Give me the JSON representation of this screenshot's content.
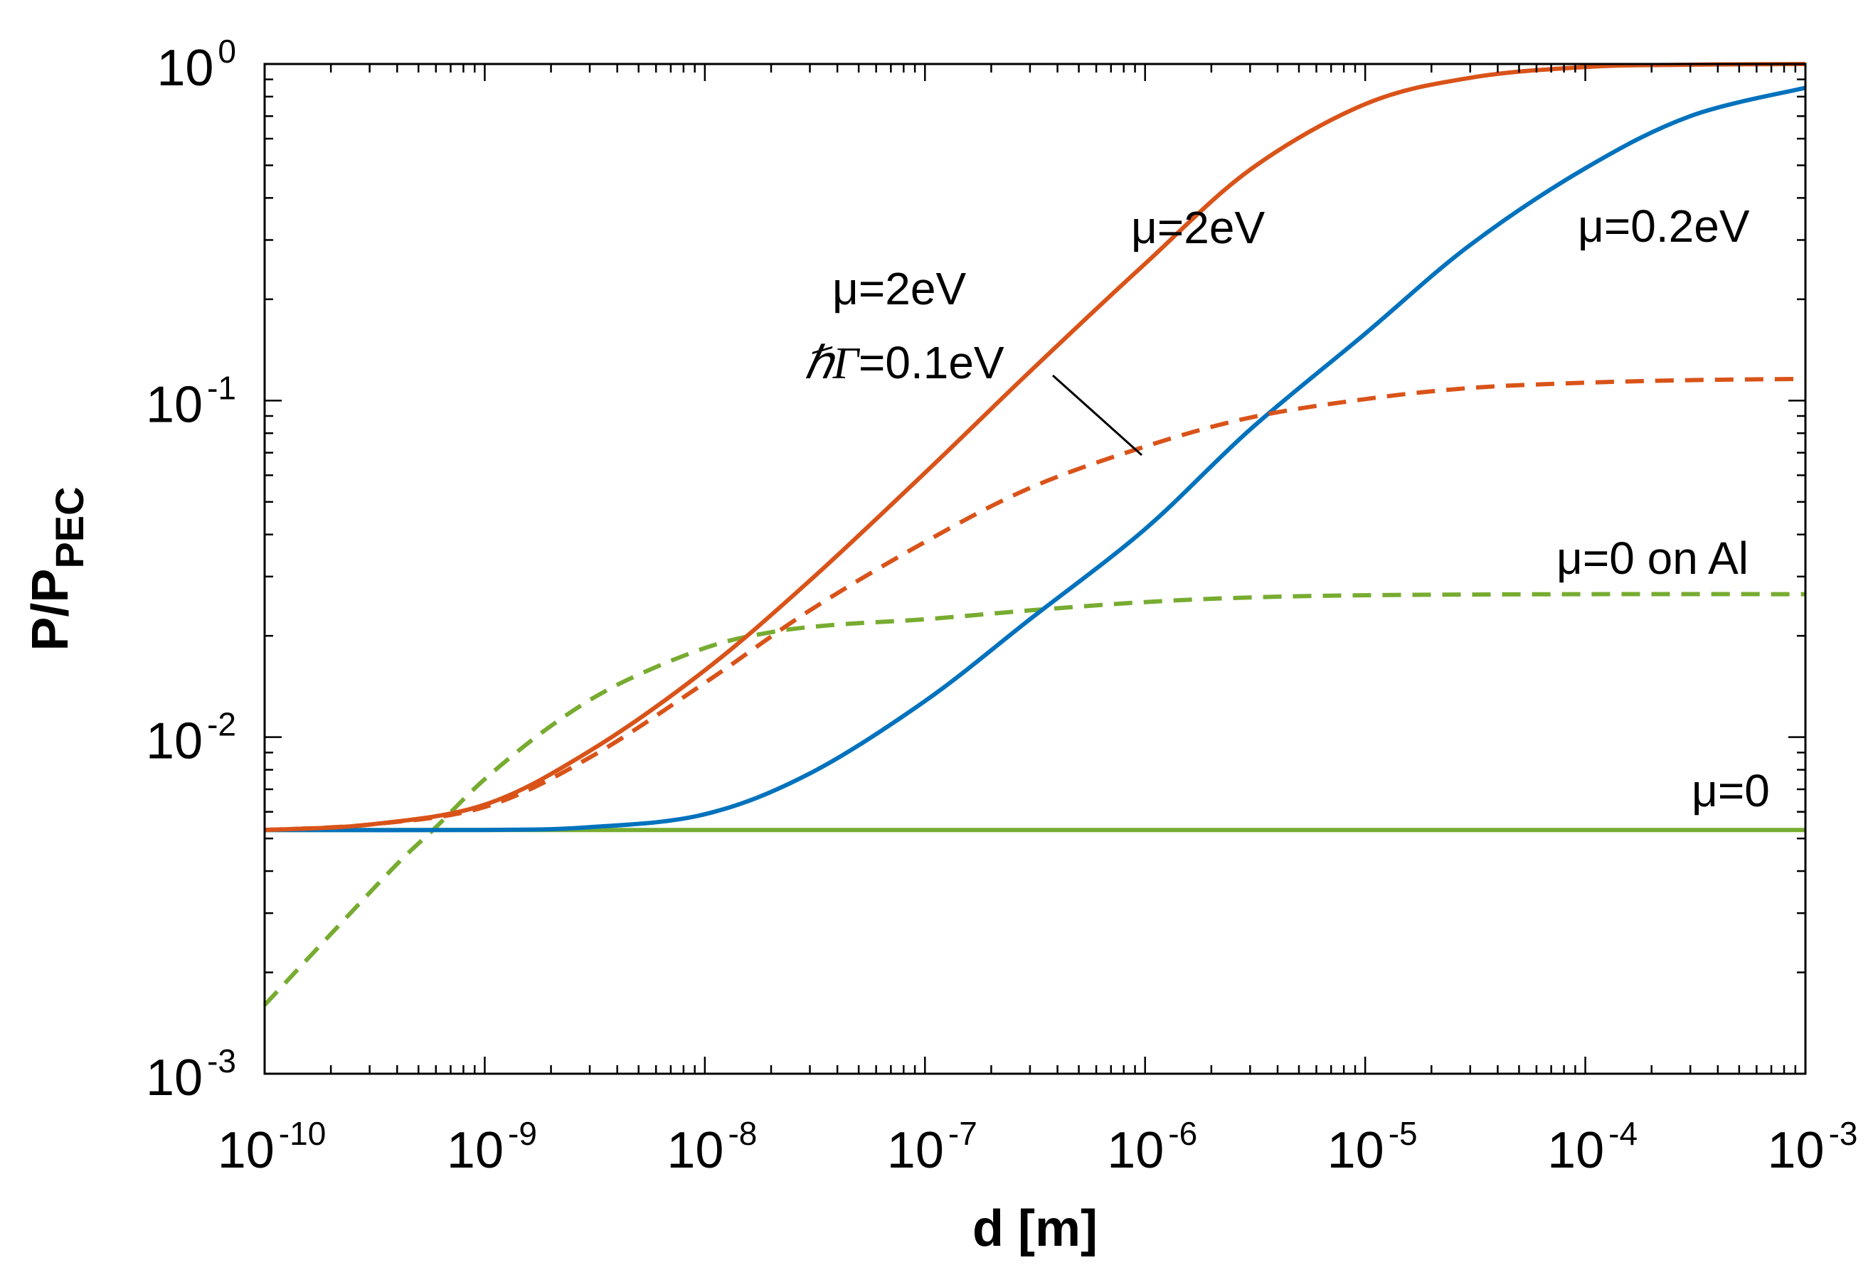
{
  "chart_data": {
    "type": "line",
    "title": "",
    "xlabel": "d [m]",
    "ylabel_main": "P/P",
    "ylabel_sub": "PEC",
    "xscale": "log",
    "yscale": "log",
    "xlim": [
      1e-10,
      0.001
    ],
    "ylim": [
      0.001,
      1
    ],
    "grid": false,
    "x_ticks": [
      {
        "base": "10",
        "exp": "-10"
      },
      {
        "base": "10",
        "exp": "-9"
      },
      {
        "base": "10",
        "exp": "-8"
      },
      {
        "base": "10",
        "exp": "-7"
      },
      {
        "base": "10",
        "exp": "-6"
      },
      {
        "base": "10",
        "exp": "-5"
      },
      {
        "base": "10",
        "exp": "-4"
      },
      {
        "base": "10",
        "exp": "-3"
      }
    ],
    "y_ticks": [
      {
        "base": "10",
        "exp": "0"
      },
      {
        "base": "10",
        "exp": "-1"
      },
      {
        "base": "10",
        "exp": "-2"
      },
      {
        "base": "10",
        "exp": "-3"
      }
    ],
    "series": [
      {
        "name": "mu=2eV",
        "color": "#d95319",
        "dash": "solid",
        "x": [
          1e-10,
          3e-10,
          1e-09,
          3e-09,
          1e-08,
          3e-08,
          1e-07,
          3e-07,
          1e-06,
          3e-06,
          1e-05,
          3e-05,
          0.0001,
          0.0003,
          0.001
        ],
        "y": [
          0.0053,
          0.0055,
          0.0063,
          0.0091,
          0.0158,
          0.0292,
          0.061,
          0.122,
          0.255,
          0.485,
          0.76,
          0.91,
          0.98,
          0.995,
          1.0
        ]
      },
      {
        "name": "mu=2eV hGamma=0.1eV",
        "color": "#d95319",
        "dash": "dashed",
        "x": [
          1e-10,
          3e-10,
          1e-09,
          3e-09,
          1e-08,
          3e-08,
          1e-07,
          3e-07,
          1e-06,
          3e-06,
          1e-05,
          3e-05,
          0.0001,
          0.0003,
          0.001
        ],
        "y": [
          0.0053,
          0.0055,
          0.0062,
          0.0087,
          0.0145,
          0.0238,
          0.038,
          0.055,
          0.073,
          0.089,
          0.101,
          0.109,
          0.113,
          0.115,
          0.116
        ]
      },
      {
        "name": "mu=0.2eV",
        "color": "#0072bd",
        "dash": "solid",
        "x": [
          1e-10,
          1e-09,
          3e-09,
          1e-08,
          3e-08,
          1e-07,
          3e-07,
          1e-06,
          3e-06,
          1e-05,
          3e-05,
          0.0001,
          0.0003,
          0.001
        ],
        "y": [
          0.0053,
          0.0053,
          0.0054,
          0.0059,
          0.0078,
          0.0128,
          0.0224,
          0.0415,
          0.082,
          0.158,
          0.29,
          0.49,
          0.7,
          0.85
        ]
      },
      {
        "name": "mu=0 on Al",
        "color": "#77ac30",
        "dash": "dashed",
        "x": [
          1e-10,
          2e-10,
          4e-10,
          6e-10,
          1e-09,
          2e-09,
          4e-09,
          1e-08,
          2e-08,
          4e-08,
          1e-07,
          3e-07,
          1e-06,
          3e-06,
          1e-05,
          0.0001,
          0.001
        ],
        "y": [
          0.0016,
          0.0026,
          0.0042,
          0.0054,
          0.0075,
          0.0108,
          0.0143,
          0.0184,
          0.0205,
          0.0216,
          0.0224,
          0.0238,
          0.0252,
          0.026,
          0.0264,
          0.0266,
          0.0266
        ]
      },
      {
        "name": "mu=0",
        "color": "#77ac30",
        "dash": "solid",
        "x": [
          1e-10,
          0.001
        ],
        "y": [
          0.0053,
          0.0053
        ]
      }
    ],
    "annotations": [
      {
        "text": "μ=2eV",
        "target": "mu=2eV"
      },
      {
        "text": "μ=0.2eV",
        "target": "mu=0.2eV"
      },
      {
        "text": "μ=2eV",
        "target": "mu=2eV hGamma=0.1eV"
      },
      {
        "text_symbol": "ℏΓ",
        "text": "=0.1eV",
        "target": "mu=2eV hGamma=0.1eV"
      },
      {
        "text": "μ=0 on Al",
        "target": "mu=0 on Al"
      },
      {
        "text": "μ=0",
        "target": "mu=0"
      }
    ]
  }
}
